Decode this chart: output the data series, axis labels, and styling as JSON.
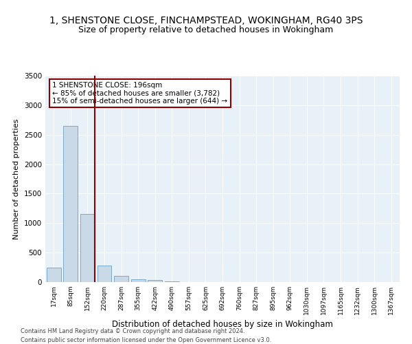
{
  "title": "1, SHENSTONE CLOSE, FINCHAMPSTEAD, WOKINGHAM, RG40 3PS",
  "subtitle": "Size of property relative to detached houses in Wokingham",
  "xlabel": "Distribution of detached houses by size in Wokingham",
  "ylabel": "Number of detached properties",
  "categories": [
    "17sqm",
    "85sqm",
    "152sqm",
    "220sqm",
    "287sqm",
    "355sqm",
    "422sqm",
    "490sqm",
    "557sqm",
    "625sqm",
    "692sqm",
    "760sqm",
    "827sqm",
    "895sqm",
    "962sqm",
    "1030sqm",
    "1097sqm",
    "1165sqm",
    "1232sqm",
    "1300sqm",
    "1367sqm"
  ],
  "values": [
    250,
    2650,
    1150,
    275,
    100,
    50,
    30,
    10,
    0,
    0,
    0,
    0,
    0,
    0,
    0,
    0,
    0,
    0,
    0,
    0,
    0
  ],
  "bar_color": "#c9d9e8",
  "bar_edge_color": "#7aaac8",
  "vline_x": 2.42,
  "vline_color": "#8b0000",
  "annotation_text": "1 SHENSTONE CLOSE: 196sqm\n← 85% of detached houses are smaller (3,782)\n15% of semi-detached houses are larger (644) →",
  "annotation_box_color": "white",
  "annotation_box_edge_color": "#8b0000",
  "ylim": [
    0,
    3500
  ],
  "yticks": [
    0,
    500,
    1000,
    1500,
    2000,
    2500,
    3000,
    3500
  ],
  "bg_color": "#e8f0f8",
  "footer1": "Contains HM Land Registry data © Crown copyright and database right 2024.",
  "footer2": "Contains public sector information licensed under the Open Government Licence v3.0.",
  "title_fontsize": 10,
  "subtitle_fontsize": 9,
  "xlabel_fontsize": 8.5,
  "ylabel_fontsize": 8,
  "annot_fontsize": 7.5
}
